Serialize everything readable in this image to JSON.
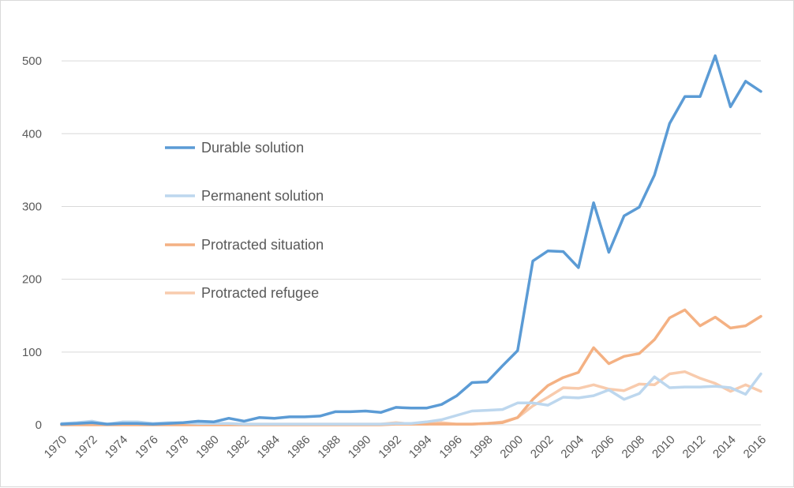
{
  "chart_data": {
    "type": "line",
    "title": "",
    "xlabel": "",
    "ylabel": "",
    "ylim": [
      0,
      500
    ],
    "yticks": [
      0,
      100,
      200,
      300,
      400,
      500
    ],
    "grid": "horizontal",
    "legend_position": "inside-left",
    "x": [
      1970,
      1971,
      1972,
      1973,
      1974,
      1975,
      1976,
      1977,
      1978,
      1979,
      1980,
      1981,
      1982,
      1983,
      1984,
      1985,
      1986,
      1987,
      1988,
      1989,
      1990,
      1991,
      1992,
      1993,
      1994,
      1995,
      1996,
      1997,
      1998,
      1999,
      2000,
      2001,
      2002,
      2003,
      2004,
      2005,
      2006,
      2007,
      2008,
      2009,
      2010,
      2011,
      2012,
      2013,
      2014,
      2015,
      2016
    ],
    "xtick_labels": [
      "1970",
      "1972",
      "1974",
      "1976",
      "1978",
      "1980",
      "1982",
      "1984",
      "1986",
      "1988",
      "1990",
      "1992",
      "1994",
      "1996",
      "1998",
      "2000",
      "2002",
      "2004",
      "2006",
      "2008",
      "2010",
      "2012",
      "2014",
      "2016"
    ],
    "series": [
      {
        "name": "Durable solution",
        "color": "#5b9bd5",
        "values": [
          1,
          2,
          3,
          1,
          2,
          2,
          1,
          2,
          3,
          5,
          4,
          9,
          5,
          10,
          9,
          11,
          11,
          12,
          18,
          18,
          19,
          17,
          24,
          23,
          23,
          28,
          40,
          58,
          59,
          81,
          102,
          225,
          239,
          238,
          216,
          305,
          237,
          287,
          299,
          343,
          414,
          451,
          451,
          507,
          437,
          472,
          458
        ]
      },
      {
        "name": "Permanent solution",
        "color": "#bdd7ee",
        "values": [
          2,
          3,
          5,
          1,
          4,
          4,
          2,
          3,
          3,
          2,
          2,
          2,
          1,
          1,
          1,
          1,
          1,
          1,
          1,
          1,
          1,
          1,
          2,
          2,
          4,
          7,
          13,
          19,
          20,
          21,
          30,
          30,
          27,
          38,
          37,
          40,
          48,
          35,
          43,
          66,
          51,
          52,
          52,
          53,
          51,
          42,
          70
        ]
      },
      {
        "name": "Protracted situation",
        "color": "#f4b183",
        "values": [
          0,
          0,
          0,
          0,
          0,
          0,
          0,
          0,
          0,
          0,
          0,
          0,
          0,
          0,
          0,
          0,
          0,
          0,
          0,
          0,
          0,
          0,
          1,
          1,
          1,
          1,
          1,
          1,
          2,
          3,
          10,
          35,
          54,
          65,
          72,
          106,
          84,
          94,
          98,
          117,
          147,
          158,
          136,
          148,
          133,
          136,
          149
        ]
      },
      {
        "name": "Protracted refugee",
        "color": "#f8cbad",
        "values": [
          1,
          1,
          1,
          1,
          1,
          1,
          1,
          1,
          1,
          1,
          1,
          1,
          1,
          1,
          1,
          1,
          1,
          1,
          1,
          1,
          1,
          1,
          3,
          1,
          1,
          3,
          1,
          1,
          2,
          4,
          10,
          26,
          38,
          51,
          50,
          55,
          49,
          47,
          56,
          55,
          70,
          73,
          64,
          57,
          46,
          55,
          46
        ]
      }
    ]
  }
}
